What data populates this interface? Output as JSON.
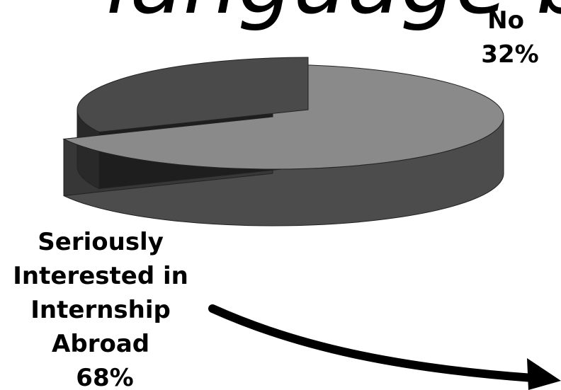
{
  "heading_fragment": "language bod",
  "chart_data": {
    "type": "pie",
    "style": "3d-exploded",
    "title": "",
    "slices": [
      {
        "label_lines": [
          "Seriously",
          "Interested in",
          "Internship",
          "Abroad"
        ],
        "percent_label": "68%",
        "value": 68,
        "color": "#8a8a8a"
      },
      {
        "label_lines": [
          "No"
        ],
        "percent_label": "32%",
        "value": 32,
        "color": "#4a4a4a"
      }
    ],
    "legend": "none"
  },
  "annotation": {
    "arrow": "curved-arrow-right"
  }
}
